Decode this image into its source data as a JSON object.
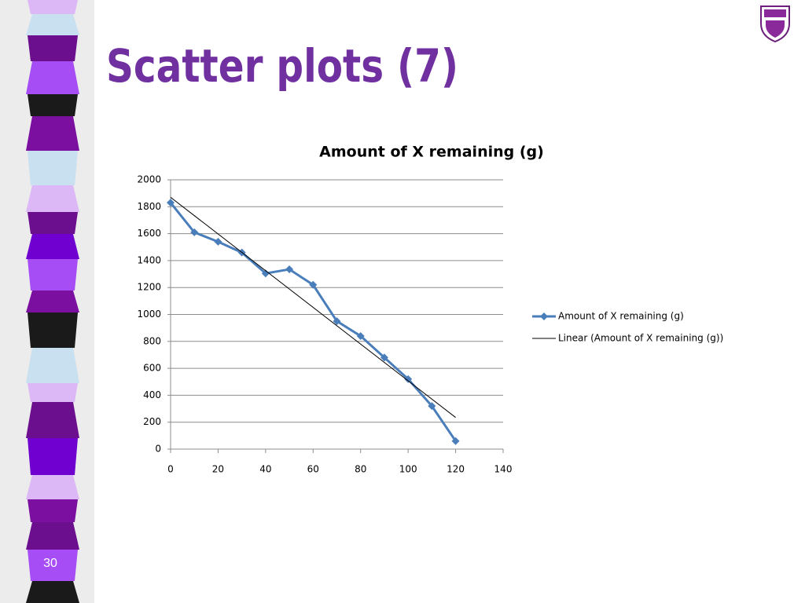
{
  "slide": {
    "title": "Scatter plots (7)",
    "number": "30"
  },
  "chart_data": {
    "type": "line",
    "title": "Amount of X remaining (g)",
    "series": [
      {
        "name": "Amount of X remaining (g)",
        "color": "#4a7ebb",
        "marker": "diamond",
        "x": [
          0,
          10,
          20,
          30,
          40,
          50,
          60,
          70,
          80,
          90,
          100,
          110,
          120
        ],
        "values": [
          1830,
          1610,
          1540,
          1460,
          1305,
          1335,
          1220,
          950,
          840,
          680,
          520,
          320,
          60
        ]
      },
      {
        "name": "Linear (Amount of X remaining (g))",
        "color": "#000000",
        "marker": "none",
        "x": [
          0,
          120
        ],
        "values": [
          1870,
          235
        ]
      }
    ],
    "xlim": [
      0,
      140
    ],
    "xticks": [
      0,
      20,
      40,
      60,
      80,
      100,
      120,
      140
    ],
    "ylim": [
      0,
      2000
    ],
    "yticks": [
      0,
      200,
      400,
      600,
      800,
      1000,
      1200,
      1400,
      1600,
      1800,
      2000
    ],
    "grid": true,
    "legend": "right"
  }
}
